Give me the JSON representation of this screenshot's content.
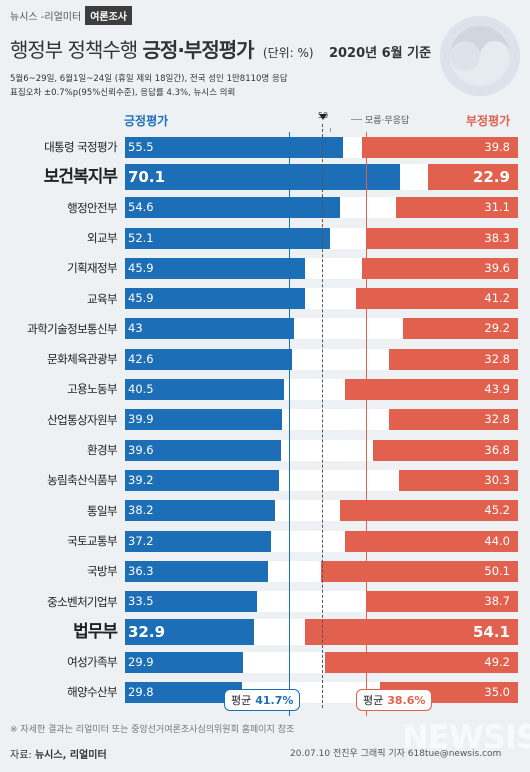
{
  "brand": {
    "name": "뉴시스 -리얼미터",
    "tag": "여론조사"
  },
  "header": {
    "title_normal": "행정부 정책수행",
    "title_bold": "긍정·부정평가",
    "unit": "(단위: %)",
    "date": "2020년 6월 기준",
    "meta_line1": "5월6~29일, 6월1일~24일 (휴일 제외 18일간), 전국 성인 1만8110명 응답",
    "meta_line2": "표집오차 ±0.7%p(95%신뢰수준), 응답률 4.3%, 뉴시스 의뢰"
  },
  "legend": {
    "positive": "긍정평가",
    "negative": "부정평가",
    "fifty": "50",
    "dont_know": "모름·무응답"
  },
  "averages": {
    "label": "평균",
    "positive": "41.7%",
    "negative": "38.6%"
  },
  "footer": {
    "note": "※ 자세한 결과는 리얼미터 또는 중앙선거여론조사심의위원회 홈페이지 참조",
    "source_label": "자료:",
    "source_value": "뉴시스, 리얼미터",
    "credit": "20.07.10 전진우 그래픽 기자 618tue@newsis.com",
    "watermark": "NEWSIS"
  },
  "colors": {
    "positive": "#1c6eb6",
    "negative": "#e2604e",
    "neutral": "#ffffff"
  },
  "chart_data": {
    "type": "bar",
    "orientation": "horizontal-diverging",
    "xlim": [
      0,
      100
    ],
    "categories": [
      "대통령 국정평가",
      "보건복지부",
      "행정안전부",
      "외교부",
      "기획재정부",
      "교육부",
      "과학기술정보통신부",
      "문화체육관광부",
      "고용노동부",
      "산업통상자원부",
      "환경부",
      "농림축산식품부",
      "통일부",
      "국토교통부",
      "국방부",
      "중소벤처기업부",
      "법무부",
      "여성가족부",
      "해양수산부"
    ],
    "highlighted": [
      "보건복지부",
      "법무부"
    ],
    "series": [
      {
        "name": "긍정평가",
        "values": [
          55.5,
          70.1,
          54.6,
          52.1,
          45.9,
          45.9,
          43,
          42.6,
          40.5,
          39.9,
          39.6,
          39.2,
          38.2,
          37.2,
          36.3,
          33.5,
          32.9,
          29.9,
          29.8
        ]
      },
      {
        "name": "부정평가",
        "values": [
          39.8,
          22.9,
          31.1,
          38.3,
          39.6,
          41.2,
          29.2,
          32.8,
          43.9,
          32.8,
          36.8,
          30.3,
          45.2,
          44.0,
          50.1,
          38.7,
          54.1,
          49.2,
          35.0
        ]
      }
    ],
    "reference_lines": [
      {
        "value": 50,
        "label": "50"
      }
    ],
    "average_positive": 41.7,
    "average_negative": 38.6
  }
}
